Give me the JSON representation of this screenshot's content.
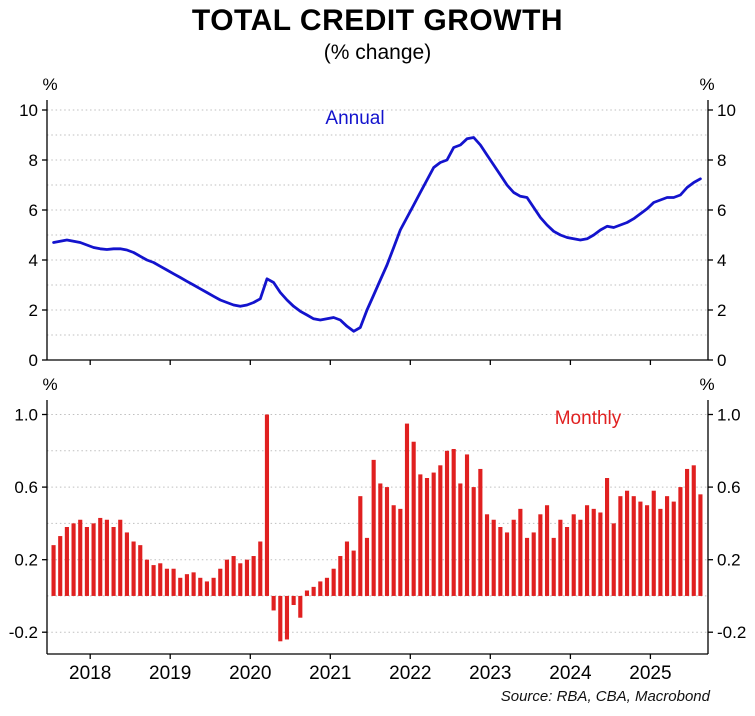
{
  "title": "TOTAL CREDIT GROWTH",
  "subtitle": "(% change)",
  "source": "Source: RBA, CBA, Macrobond",
  "colors": {
    "annual_line": "#1313cd",
    "monthly_bar": "#e02020",
    "grid": "#bfbfbf",
    "axis": "#000000",
    "text": "#000000"
  },
  "x_axis": {
    "domain": [
      2017.46,
      2025.72
    ],
    "year_labels": [
      "2018",
      "2019",
      "2020",
      "2021",
      "2022",
      "2023",
      "2024",
      "2025"
    ]
  },
  "chart_data": [
    {
      "type": "line",
      "panel": "annual",
      "title_label": "Annual",
      "unit": "%",
      "frequency": "monthly",
      "x_start": 2017.542,
      "ylim": [
        0,
        10.4
      ],
      "yticks": [
        0,
        2,
        4,
        6,
        8,
        10
      ],
      "tick_format": "int",
      "grid_from": 1,
      "grid_step": 1,
      "values": [
        4.7,
        4.75,
        4.8,
        4.75,
        4.7,
        4.6,
        4.5,
        4.45,
        4.42,
        4.45,
        4.45,
        4.4,
        4.3,
        4.15,
        4.0,
        3.9,
        3.75,
        3.6,
        3.45,
        3.3,
        3.15,
        3.0,
        2.85,
        2.7,
        2.55,
        2.4,
        2.3,
        2.2,
        2.15,
        2.2,
        2.3,
        2.45,
        3.25,
        3.1,
        2.7,
        2.4,
        2.15,
        1.95,
        1.8,
        1.65,
        1.6,
        1.65,
        1.7,
        1.6,
        1.35,
        1.15,
        1.3,
        2.0,
        2.6,
        3.2,
        3.8,
        4.5,
        5.2,
        5.7,
        6.2,
        6.7,
        7.2,
        7.7,
        7.9,
        8.0,
        8.5,
        8.6,
        8.85,
        8.9,
        8.6,
        8.2,
        7.8,
        7.4,
        7.0,
        6.7,
        6.55,
        6.5,
        6.1,
        5.7,
        5.4,
        5.15,
        5.0,
        4.9,
        4.85,
        4.8,
        4.85,
        5.0,
        5.2,
        5.35,
        5.3,
        5.4,
        5.5,
        5.65,
        5.85,
        6.05,
        6.3,
        6.4,
        6.5,
        6.5,
        6.6,
        6.9,
        7.1,
        7.25
      ]
    },
    {
      "type": "bar",
      "panel": "monthly",
      "title_label": "Monthly",
      "unit": "%",
      "frequency": "monthly",
      "x_start": 2017.542,
      "ylim": [
        -0.32,
        1.08
      ],
      "yticks": [
        -0.2,
        0.2,
        0.6,
        1.0
      ],
      "tick_format": "1dp",
      "grid_from": -0.2,
      "grid_step": 0.2,
      "values": [
        0.28,
        0.33,
        0.38,
        0.4,
        0.42,
        0.38,
        0.4,
        0.43,
        0.42,
        0.38,
        0.42,
        0.35,
        0.3,
        0.28,
        0.2,
        0.17,
        0.18,
        0.15,
        0.15,
        0.1,
        0.12,
        0.13,
        0.1,
        0.08,
        0.1,
        0.15,
        0.2,
        0.22,
        0.18,
        0.2,
        0.22,
        0.3,
        1.0,
        -0.08,
        -0.25,
        -0.24,
        -0.05,
        -0.12,
        0.03,
        0.05,
        0.08,
        0.1,
        0.15,
        0.22,
        0.3,
        0.25,
        0.55,
        0.32,
        0.75,
        0.62,
        0.6,
        0.5,
        0.48,
        0.95,
        0.85,
        0.67,
        0.65,
        0.68,
        0.72,
        0.8,
        0.81,
        0.62,
        0.78,
        0.6,
        0.7,
        0.45,
        0.42,
        0.38,
        0.35,
        0.42,
        0.48,
        0.32,
        0.35,
        0.45,
        0.5,
        0.32,
        0.42,
        0.38,
        0.45,
        0.42,
        0.5,
        0.48,
        0.46,
        0.65,
        0.4,
        0.55,
        0.58,
        0.55,
        0.52,
        0.5,
        0.58,
        0.48,
        0.55,
        0.52,
        0.6,
        0.7,
        0.72,
        0.56
      ]
    }
  ]
}
